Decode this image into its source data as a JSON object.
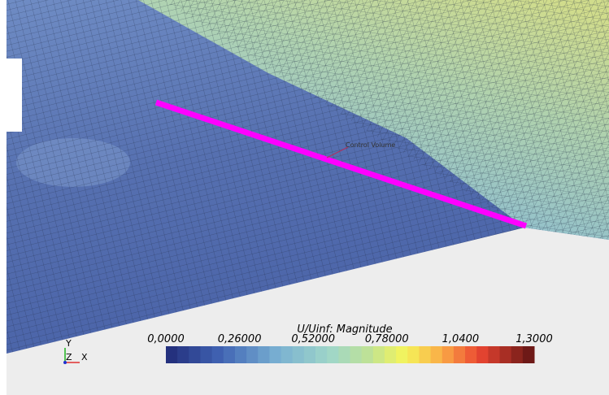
{
  "annotation": "Control Volume",
  "colorbar": {
    "title": "U/Uinf: Magnitude",
    "ticks": [
      "0,0000",
      "0,26000",
      "0,52000",
      "0,78000",
      "1,0400",
      "1,3000"
    ]
  },
  "axes_triad": {
    "y": "Y",
    "z": "Z",
    "x": "X"
  }
}
